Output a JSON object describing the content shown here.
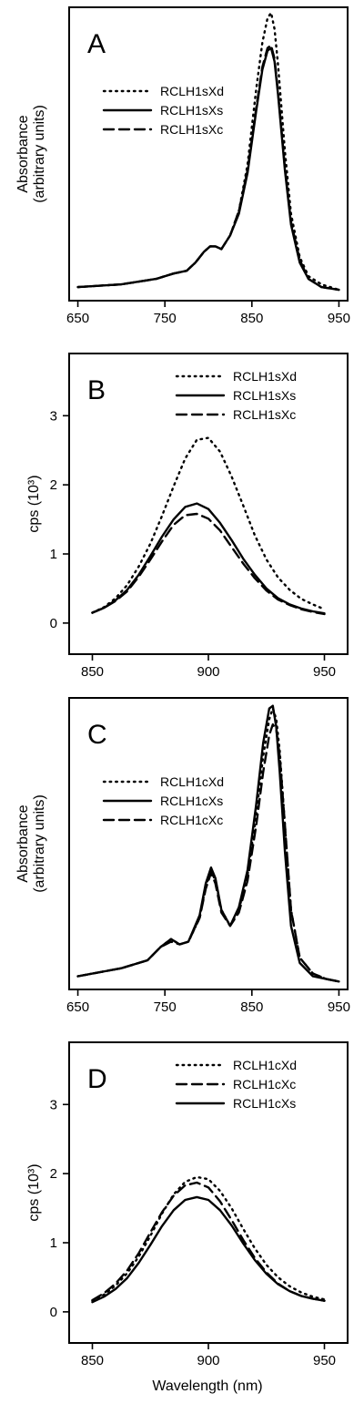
{
  "figure": {
    "xlabel": "Wavelength (nm)"
  },
  "chart_data": [
    {
      "type": "line",
      "panel_letter": "A",
      "ylabel_line1": "Absorbance",
      "ylabel_line2": "(arbitrary units)",
      "xlim": [
        640,
        960
      ],
      "ylim": [
        0,
        1.08
      ],
      "xticks": [
        650,
        750,
        850,
        950
      ],
      "yticks": [],
      "legend_position": "upper-left",
      "series": [
        {
          "name": "RCLH1sXd",
          "style": "dotted",
          "x": [
            650,
            700,
            740,
            760,
            775,
            785,
            795,
            802,
            808,
            815,
            825,
            835,
            845,
            855,
            862,
            868,
            872,
            876,
            880,
            888,
            895,
            905,
            915,
            930,
            950
          ],
          "y": [
            0.05,
            0.06,
            0.08,
            0.1,
            0.11,
            0.14,
            0.18,
            0.2,
            0.2,
            0.19,
            0.24,
            0.33,
            0.5,
            0.78,
            0.95,
            1.04,
            1.06,
            1.0,
            0.87,
            0.55,
            0.32,
            0.16,
            0.09,
            0.06,
            0.04
          ]
        },
        {
          "name": "RCLH1sXs",
          "style": "solid",
          "x": [
            650,
            700,
            740,
            760,
            775,
            785,
            795,
            802,
            808,
            815,
            825,
            835,
            845,
            855,
            862,
            868,
            872,
            876,
            880,
            888,
            895,
            905,
            915,
            930,
            950
          ],
          "y": [
            0.05,
            0.06,
            0.08,
            0.1,
            0.11,
            0.14,
            0.18,
            0.2,
            0.2,
            0.19,
            0.24,
            0.32,
            0.47,
            0.7,
            0.85,
            0.92,
            0.93,
            0.88,
            0.76,
            0.48,
            0.28,
            0.14,
            0.08,
            0.05,
            0.04
          ]
        },
        {
          "name": "RCLH1sXc",
          "style": "dashed",
          "x": [
            650,
            700,
            740,
            760,
            775,
            785,
            795,
            802,
            808,
            815,
            825,
            835,
            845,
            855,
            862,
            868,
            872,
            876,
            880,
            888,
            895,
            905,
            915,
            930,
            950
          ],
          "y": [
            0.05,
            0.06,
            0.08,
            0.1,
            0.11,
            0.14,
            0.18,
            0.2,
            0.2,
            0.19,
            0.24,
            0.33,
            0.48,
            0.71,
            0.86,
            0.93,
            0.94,
            0.89,
            0.77,
            0.49,
            0.29,
            0.15,
            0.08,
            0.05,
            0.04
          ]
        }
      ]
    },
    {
      "type": "line",
      "panel_letter": "B",
      "ylabel_line1": "cps (10³)",
      "ylabel_line2": "",
      "xlim": [
        840,
        960
      ],
      "ylim": [
        -0.45,
        3.9
      ],
      "xticks": [
        850,
        900,
        950
      ],
      "yticks": [
        0,
        1,
        2,
        3
      ],
      "legend_position": "upper-right",
      "series": [
        {
          "name": "RCLH1sXd",
          "style": "dotted",
          "x": [
            850,
            855,
            860,
            865,
            870,
            875,
            880,
            885,
            890,
            895,
            900,
            905,
            910,
            915,
            920,
            925,
            930,
            935,
            940,
            945,
            950
          ],
          "y": [
            0.15,
            0.23,
            0.36,
            0.55,
            0.82,
            1.15,
            1.55,
            1.98,
            2.38,
            2.65,
            2.68,
            2.48,
            2.12,
            1.7,
            1.27,
            0.92,
            0.66,
            0.48,
            0.35,
            0.27,
            0.2
          ]
        },
        {
          "name": "RCLH1sXs",
          "style": "solid",
          "x": [
            850,
            855,
            860,
            865,
            870,
            875,
            880,
            885,
            890,
            895,
            900,
            905,
            910,
            915,
            920,
            925,
            930,
            935,
            940,
            945,
            950
          ],
          "y": [
            0.15,
            0.22,
            0.33,
            0.48,
            0.7,
            0.97,
            1.25,
            1.5,
            1.68,
            1.73,
            1.65,
            1.45,
            1.2,
            0.93,
            0.7,
            0.5,
            0.36,
            0.27,
            0.21,
            0.17,
            0.14
          ]
        },
        {
          "name": "RCLH1sXc",
          "style": "dashed",
          "x": [
            850,
            855,
            860,
            865,
            870,
            875,
            880,
            885,
            890,
            895,
            900,
            905,
            910,
            915,
            920,
            925,
            930,
            935,
            940,
            945,
            950
          ],
          "y": [
            0.15,
            0.22,
            0.32,
            0.46,
            0.67,
            0.92,
            1.18,
            1.42,
            1.56,
            1.58,
            1.51,
            1.34,
            1.1,
            0.86,
            0.65,
            0.47,
            0.34,
            0.26,
            0.2,
            0.16,
            0.13
          ]
        }
      ]
    },
    {
      "type": "line",
      "panel_letter": "C",
      "ylabel_line1": "Absorbance",
      "ylabel_line2": "(arbitrary units)",
      "xlim": [
        640,
        960
      ],
      "ylim": [
        0,
        1.1
      ],
      "xticks": [
        650,
        750,
        850,
        950
      ],
      "yticks": [],
      "legend_position": "upper-left",
      "series": [
        {
          "name": "RCLH1cXd",
          "style": "dotted",
          "x": [
            650,
            700,
            730,
            745,
            757,
            767,
            777,
            790,
            797,
            803,
            808,
            815,
            825,
            835,
            845,
            855,
            863,
            870,
            874,
            878,
            882,
            888,
            895,
            905,
            920,
            935,
            950
          ],
          "y": [
            0.05,
            0.08,
            0.11,
            0.16,
            0.19,
            0.17,
            0.18,
            0.27,
            0.39,
            0.45,
            0.41,
            0.3,
            0.24,
            0.3,
            0.43,
            0.66,
            0.88,
            1.02,
            1.06,
            1.02,
            0.9,
            0.62,
            0.3,
            0.12,
            0.06,
            0.04,
            0.03
          ]
        },
        {
          "name": "RCLH1cXs",
          "style": "solid",
          "x": [
            650,
            700,
            730,
            745,
            757,
            767,
            777,
            790,
            797,
            803,
            808,
            815,
            825,
            835,
            845,
            855,
            863,
            870,
            874,
            878,
            882,
            888,
            895,
            905,
            920,
            935,
            950
          ],
          "y": [
            0.05,
            0.08,
            0.11,
            0.16,
            0.19,
            0.17,
            0.18,
            0.28,
            0.4,
            0.46,
            0.42,
            0.3,
            0.24,
            0.31,
            0.45,
            0.7,
            0.93,
            1.06,
            1.07,
            0.99,
            0.82,
            0.52,
            0.24,
            0.1,
            0.05,
            0.04,
            0.03
          ]
        },
        {
          "name": "RCLH1cXc",
          "style": "dashed",
          "x": [
            650,
            700,
            730,
            745,
            757,
            767,
            777,
            790,
            797,
            803,
            808,
            815,
            825,
            835,
            845,
            855,
            863,
            870,
            874,
            878,
            882,
            888,
            895,
            905,
            920,
            935,
            950
          ],
          "y": [
            0.05,
            0.08,
            0.11,
            0.16,
            0.18,
            0.17,
            0.18,
            0.27,
            0.38,
            0.44,
            0.4,
            0.29,
            0.24,
            0.29,
            0.41,
            0.62,
            0.82,
            0.96,
            1.0,
            0.98,
            0.88,
            0.62,
            0.3,
            0.12,
            0.06,
            0.04,
            0.03
          ]
        }
      ]
    },
    {
      "type": "line",
      "panel_letter": "D",
      "ylabel_line1": "cps (10³)",
      "ylabel_line2": "",
      "xlim": [
        840,
        960
      ],
      "ylim": [
        -0.45,
        3.9
      ],
      "xticks": [
        850,
        900,
        950
      ],
      "yticks": [
        0,
        1,
        2,
        3
      ],
      "legend_position": "upper-right",
      "series": [
        {
          "name": "RCLH1cXd",
          "style": "dotted",
          "x": [
            850,
            855,
            860,
            865,
            870,
            875,
            880,
            885,
            890,
            895,
            900,
            905,
            910,
            915,
            920,
            925,
            930,
            935,
            940,
            945,
            950
          ],
          "y": [
            0.16,
            0.25,
            0.38,
            0.56,
            0.8,
            1.1,
            1.42,
            1.7,
            1.88,
            1.95,
            1.92,
            1.75,
            1.5,
            1.2,
            0.92,
            0.68,
            0.5,
            0.37,
            0.28,
            0.22,
            0.18
          ]
        },
        {
          "name": "RCLH1cXc",
          "style": "dashed",
          "x": [
            850,
            855,
            860,
            865,
            870,
            875,
            880,
            885,
            890,
            895,
            900,
            905,
            910,
            915,
            920,
            925,
            930,
            935,
            940,
            945,
            950
          ],
          "y": [
            0.17,
            0.27,
            0.41,
            0.6,
            0.85,
            1.15,
            1.44,
            1.68,
            1.83,
            1.87,
            1.8,
            1.6,
            1.33,
            1.04,
            0.78,
            0.57,
            0.41,
            0.3,
            0.23,
            0.19,
            0.16
          ]
        },
        {
          "name": "RCLH1cXs",
          "style": "solid",
          "x": [
            850,
            855,
            860,
            865,
            870,
            875,
            880,
            885,
            890,
            895,
            900,
            905,
            910,
            915,
            920,
            925,
            930,
            935,
            940,
            945,
            950
          ],
          "y": [
            0.14,
            0.22,
            0.33,
            0.49,
            0.71,
            0.97,
            1.24,
            1.47,
            1.62,
            1.66,
            1.62,
            1.47,
            1.25,
            0.99,
            0.75,
            0.55,
            0.4,
            0.3,
            0.23,
            0.19,
            0.16
          ]
        }
      ]
    }
  ]
}
